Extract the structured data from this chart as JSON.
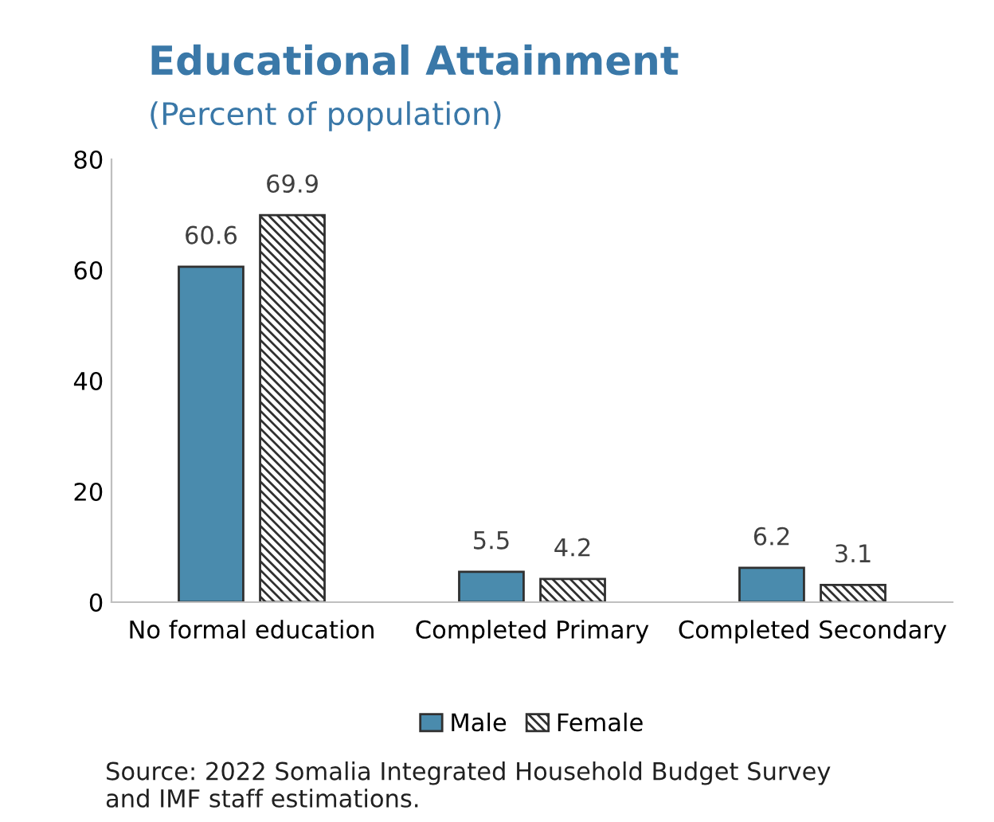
{
  "chart_data": {
    "type": "bar",
    "title": "Educational Attainment",
    "subtitle": "(Percent of population)",
    "categories": [
      "No formal education",
      "Completed Primary",
      "Completed Secondary"
    ],
    "series": [
      {
        "name": "Male",
        "color": "#4a8bad",
        "values": [
          60.6,
          5.5,
          6.2
        ]
      },
      {
        "name": "Female",
        "color": "#303030",
        "values": [
          69.9,
          4.2,
          3.1
        ]
      }
    ],
    "ylim": [
      0,
      80
    ],
    "yticks": [
      0,
      20,
      40,
      60,
      80
    ],
    "grid": false,
    "legend": "bottom",
    "data_labels": true,
    "annotations": [
      "Source: 2022 Somalia Integrated Household Budget Survey\nand IMF staff estimations."
    ]
  }
}
